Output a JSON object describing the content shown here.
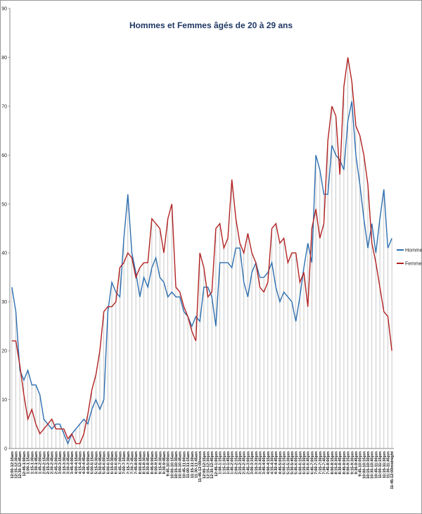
{
  "chart_data": {
    "type": "line",
    "title": "Hommes et Femmes âgés de 20 à 29 ans",
    "categories": [
      "12:00-12:15am",
      "12:15-12:30am",
      "12:30-12:45am",
      "12:45-1:00am",
      "1:00-1:15am",
      "1:15-1:30am",
      "1:30-1:45am",
      "1:45-2:00am",
      "2:00-2:15am",
      "2:15-2:30am",
      "2:30-2:45am",
      "2:45-3:00am",
      "3:00-3:15am",
      "3:15-3:30am",
      "3:30-3:45am",
      "3:45-4:00am",
      "4:00-4:15am",
      "4:15-4:30am",
      "4:30-4:45am",
      "4:45-5:00am",
      "5:00-5:15am",
      "5:15-5:30am",
      "5:30-5:45am",
      "5:45-6:00am",
      "6:00-6:15am",
      "6:15-6:30am",
      "6:30-6:45am",
      "6:45-7:00am",
      "7:00-7:15am",
      "7:15-7:30am",
      "7:30-7:45am",
      "7:45-8:00am",
      "8:00-8:15am",
      "8:15-8:30am",
      "8:30-8:45am",
      "8:45-9:00am",
      "9:00-9:15am",
      "9:15-9:30am",
      "9:30-9:45am",
      "9:45-10:00am",
      "10:00-10:15am",
      "10:15-10:30am",
      "10:30-10:45am",
      "10:45-11:00am",
      "11:00-11:15am",
      "11:15-11:30am",
      "11:30-11:45am",
      "11:45-12:00noon",
      "12:00-12:15pm",
      "12:15-12:30pm",
      "12:30-12:45pm",
      "12:45-1:00pm",
      "1:00-1:15pm",
      "1:15-1:30pm",
      "1:30-1:45pm",
      "1:45-2:00pm",
      "2:00-2:15pm",
      "2:15-2:30pm",
      "2:30-2:45pm",
      "2:45-3:00pm",
      "3:00-3:15pm",
      "3:15-3:30pm",
      "3:30-3:45pm",
      "3:45-4:00pm",
      "4:00-4:15pm",
      "4:15-4:30pm",
      "4:30-4:45pm",
      "4:45-5:00pm",
      "5:00-5:15pm",
      "5:15-5:30pm",
      "5:30-5:45pm",
      "5:45-6:00pm",
      "6:00-6:15pm",
      "6:15-6:30pm",
      "6:30-6:45pm",
      "6:45-7:00pm",
      "7:00-7:15pm",
      "7:15-7:30pm",
      "7:30-7:45pm",
      "7:45-8:00pm",
      "8:00-8:15pm",
      "8:15-8:30pm",
      "8:30-8:45pm",
      "8:45-9:00pm",
      "9:00-9:15pm",
      "9:15-9:30pm",
      "9:30-9:45pm",
      "9:45-10:00pm",
      "10:00-10:15pm",
      "10:15-10:30pm",
      "10:30-10:45pm",
      "10:45-11:00pm",
      "11:00-11:15pm",
      "11:15-11:30pm",
      "11:30-11:45pm",
      "11:45-12:00midnight"
    ],
    "series": [
      {
        "name": "Hommes",
        "color": "#2e6fb0",
        "values": [
          33,
          28,
          16,
          14,
          16,
          13,
          13,
          11,
          6,
          5,
          4,
          5,
          5,
          3,
          1,
          3,
          4,
          5,
          6,
          5,
          8,
          10,
          8,
          10,
          28,
          34,
          32,
          31,
          43,
          52,
          40,
          36,
          31,
          35,
          33,
          37,
          39,
          35,
          34,
          31,
          32,
          31,
          31,
          28,
          27,
          25,
          27,
          26,
          33,
          33,
          31,
          25,
          38,
          38,
          38,
          37,
          41,
          41,
          34,
          31,
          36,
          38,
          35,
          35,
          36,
          38,
          33,
          30,
          32,
          31,
          30,
          26,
          31,
          37,
          42,
          38,
          60,
          57,
          52,
          52,
          62,
          60,
          59,
          57,
          67,
          71,
          60,
          54,
          47,
          41,
          46,
          40,
          47,
          53,
          41,
          43
        ]
      },
      {
        "name": "Femmes",
        "color": "#b22222",
        "values": [
          22,
          22,
          17,
          11,
          6,
          8,
          5,
          3,
          4,
          5,
          6,
          4,
          4,
          4,
          2,
          3,
          1,
          1,
          3,
          7,
          12,
          15,
          20,
          28,
          29,
          29,
          30,
          37,
          38,
          40,
          39,
          35,
          37,
          38,
          38,
          47,
          46,
          45,
          40,
          47,
          50,
          33,
          32,
          29,
          27,
          24,
          22,
          40,
          37,
          31,
          32,
          45,
          46,
          41,
          43,
          55,
          47,
          42,
          40,
          44,
          40,
          38,
          33,
          32,
          34,
          45,
          46,
          42,
          43,
          38,
          40,
          40,
          34,
          36,
          29,
          45,
          49,
          43,
          46,
          63,
          70,
          68,
          56,
          74,
          80,
          75,
          66,
          64,
          60,
          54,
          42,
          38,
          33,
          28,
          27,
          20
        ]
      }
    ],
    "ylim": [
      0,
      90
    ],
    "yticks": [
      0,
      10,
      20,
      30,
      40,
      50,
      60,
      70,
      80,
      90
    ],
    "legend": "right"
  }
}
